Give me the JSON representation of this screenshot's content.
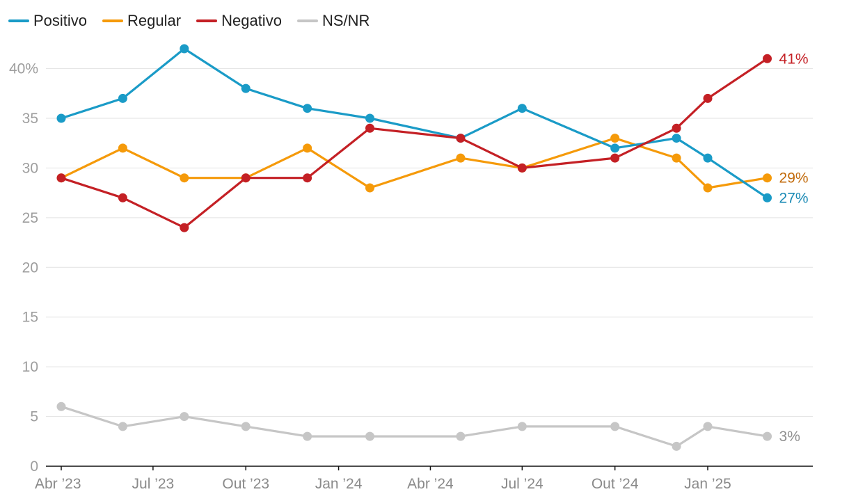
{
  "chart_data": {
    "type": "line",
    "title": "",
    "xlabel": "",
    "ylabel": "",
    "ylim": [
      0,
      42
    ],
    "y_ticks": [
      {
        "value": 0,
        "label": "0"
      },
      {
        "value": 5,
        "label": "5"
      },
      {
        "value": 10,
        "label": "10"
      },
      {
        "value": 15,
        "label": "15"
      },
      {
        "value": 20,
        "label": "20"
      },
      {
        "value": 25,
        "label": "25"
      },
      {
        "value": 30,
        "label": "30"
      },
      {
        "value": 35,
        "label": "35"
      },
      {
        "value": 40,
        "label": "40%"
      }
    ],
    "x_range": [
      "2023-04-01",
      "2025-03-31"
    ],
    "x_ticks": [
      {
        "date": "2023-04-01",
        "label": "Abr ’23"
      },
      {
        "date": "2023-07-01",
        "label": "Jul ’23"
      },
      {
        "date": "2023-10-01",
        "label": "Out ’23"
      },
      {
        "date": "2024-01-01",
        "label": "Jan ’24"
      },
      {
        "date": "2024-04-01",
        "label": "Abr ’24"
      },
      {
        "date": "2024-07-01",
        "label": "Jul ’24"
      },
      {
        "date": "2024-10-01",
        "label": "Out ’24"
      },
      {
        "date": "2025-01-01",
        "label": "Jan ’25"
      }
    ],
    "x": [
      "2023-04-01",
      "2023-06-01",
      "2023-08-01",
      "2023-10-01",
      "2023-12-01",
      "2024-02-01",
      "2024-05-01",
      "2024-07-01",
      "2024-10-01",
      "2024-12-01",
      "2025-01-01",
      "2025-03-01"
    ],
    "series": [
      {
        "name": "Positivo",
        "color": "#1a9bc7",
        "label_color": "#1a8ab5",
        "end_label": "27%",
        "values": [
          35,
          37,
          42,
          38,
          36,
          35,
          33,
          36,
          32,
          33,
          31,
          27
        ]
      },
      {
        "name": "Regular",
        "color": "#f59a0a",
        "label_color": "#c26a0a",
        "end_label": "29%",
        "values": [
          29,
          32,
          29,
          29,
          32,
          28,
          31,
          30,
          33,
          31,
          28,
          29
        ]
      },
      {
        "name": "Negativo",
        "color": "#c42025",
        "label_color": "#c42025",
        "end_label": "41%",
        "values": [
          29,
          27,
          24,
          29,
          29,
          34,
          33,
          30,
          31,
          34,
          37,
          41
        ]
      },
      {
        "name": "NS/NR",
        "color": "#c6c6c6",
        "label_color": "#8f8f8f",
        "end_label": "3%",
        "values": [
          6,
          4,
          5,
          4,
          3,
          3,
          3,
          4,
          4,
          2,
          4,
          3
        ]
      }
    ]
  }
}
